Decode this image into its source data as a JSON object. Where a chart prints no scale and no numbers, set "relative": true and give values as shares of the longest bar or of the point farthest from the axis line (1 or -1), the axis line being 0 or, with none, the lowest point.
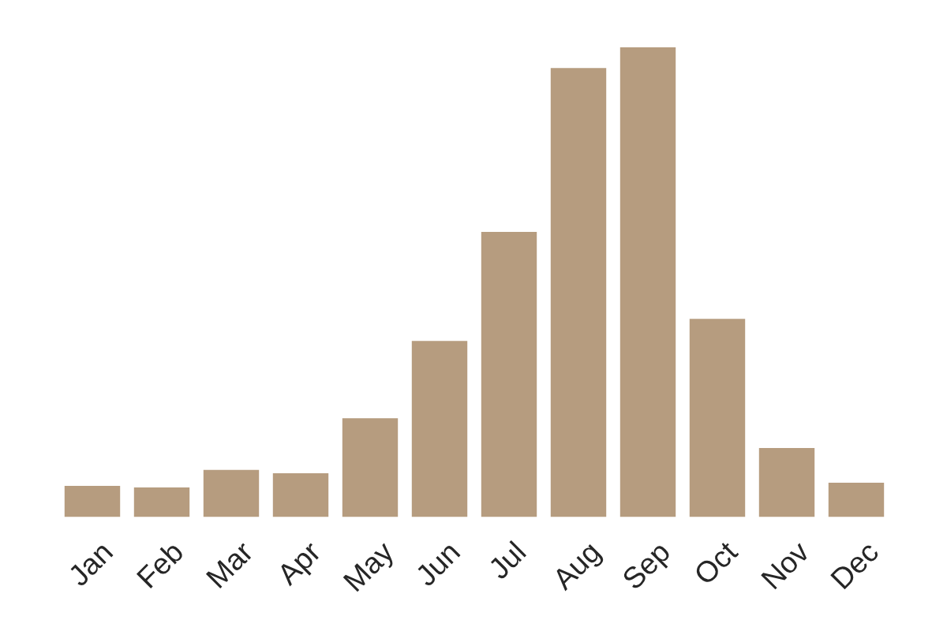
{
  "chart_data": {
    "type": "bar",
    "relative": true,
    "categories": [
      "Jan",
      "Feb",
      "Mar",
      "Apr",
      "May",
      "Jun",
      "Jul",
      "Aug",
      "Sep",
      "Oct",
      "Nov",
      "Dec"
    ],
    "values": [
      0.066,
      0.063,
      0.1,
      0.093,
      0.21,
      0.375,
      0.607,
      0.956,
      1,
      0.422,
      0.147,
      0.073
    ],
    "color": "#b69c7f"
  }
}
